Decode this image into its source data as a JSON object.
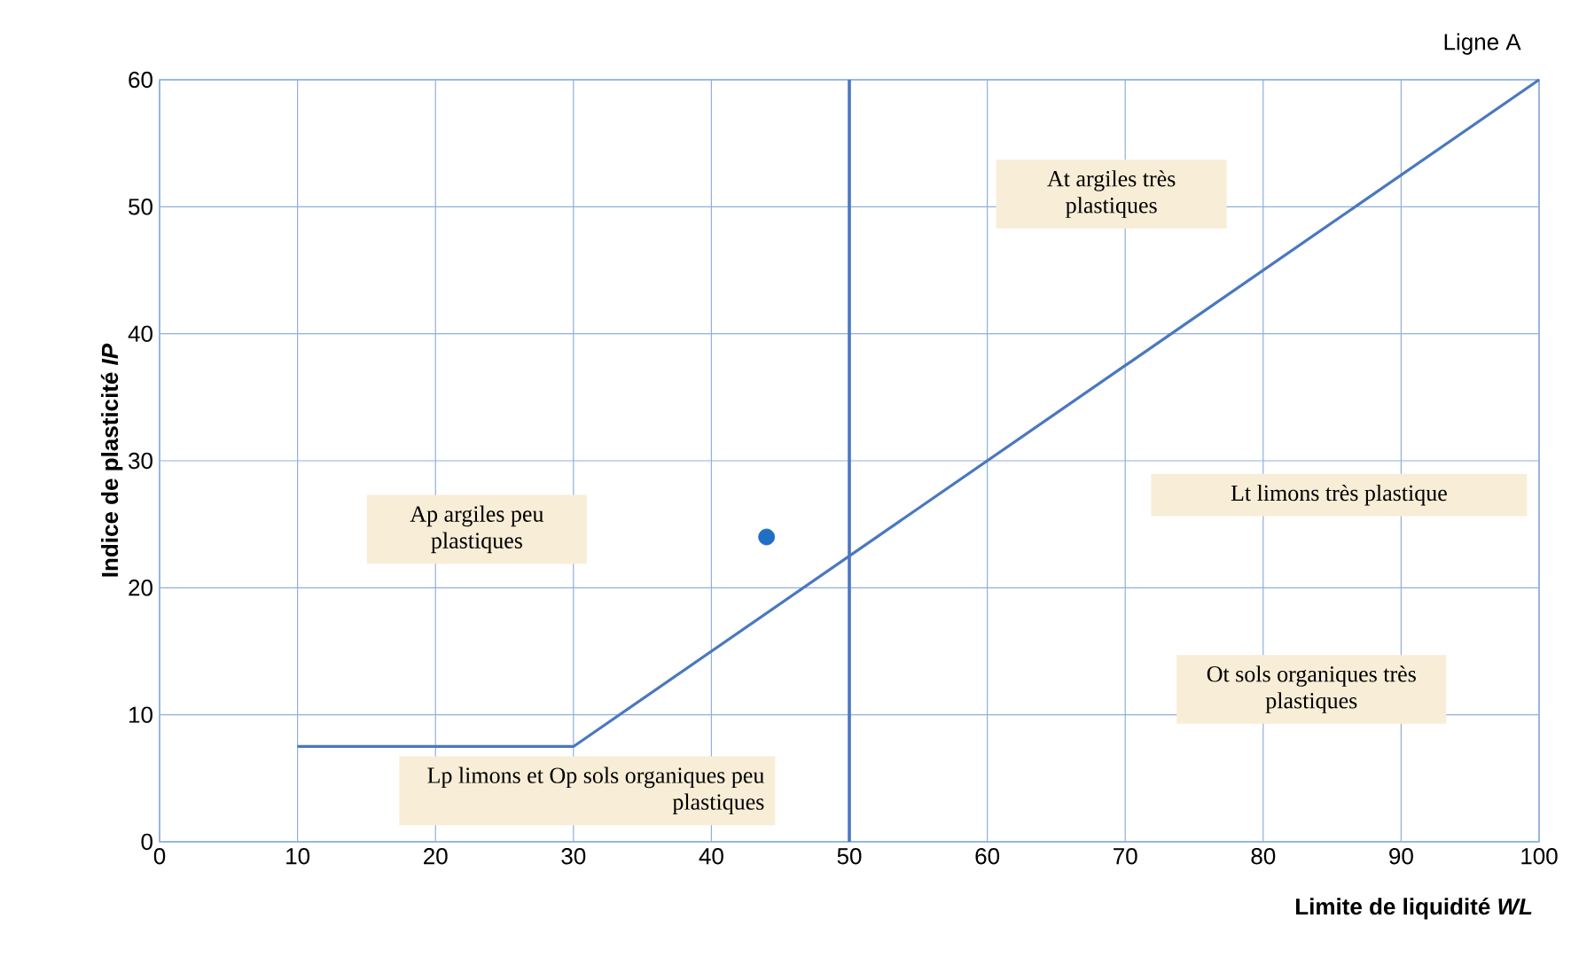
{
  "chart_data": {
    "type": "line",
    "xlabel": "Limite de liquidité *WL*",
    "ylabel": "Indice de plasticité *IP*",
    "xlim": [
      0,
      100
    ],
    "ylim": [
      0,
      60
    ],
    "xticks": [
      0,
      10,
      20,
      30,
      40,
      50,
      60,
      70,
      80,
      90,
      100
    ],
    "yticks": [
      0,
      10,
      20,
      30,
      40,
      50,
      60
    ],
    "grid": true,
    "series": [
      {
        "name": "Ligne A",
        "color": "#4a78c0",
        "x": [
          10,
          30,
          100
        ],
        "values": [
          7.5,
          7.5,
          60
        ]
      },
      {
        "type": "scatter",
        "marker": "circle",
        "color": "#1f6fc4",
        "x": [
          44
        ],
        "values": [
          24
        ]
      }
    ],
    "ref_lines": [
      {
        "axis": "x",
        "value": 50,
        "color": "#4a78c0"
      }
    ],
    "annotations": [
      "At argiles très plastiques",
      "Lt limons très plastique",
      "Ap argiles peu plastiques",
      "Ot sols organiques très plastiques",
      "Lp limons et Op sols organiques peu plastiques"
    ]
  }
}
